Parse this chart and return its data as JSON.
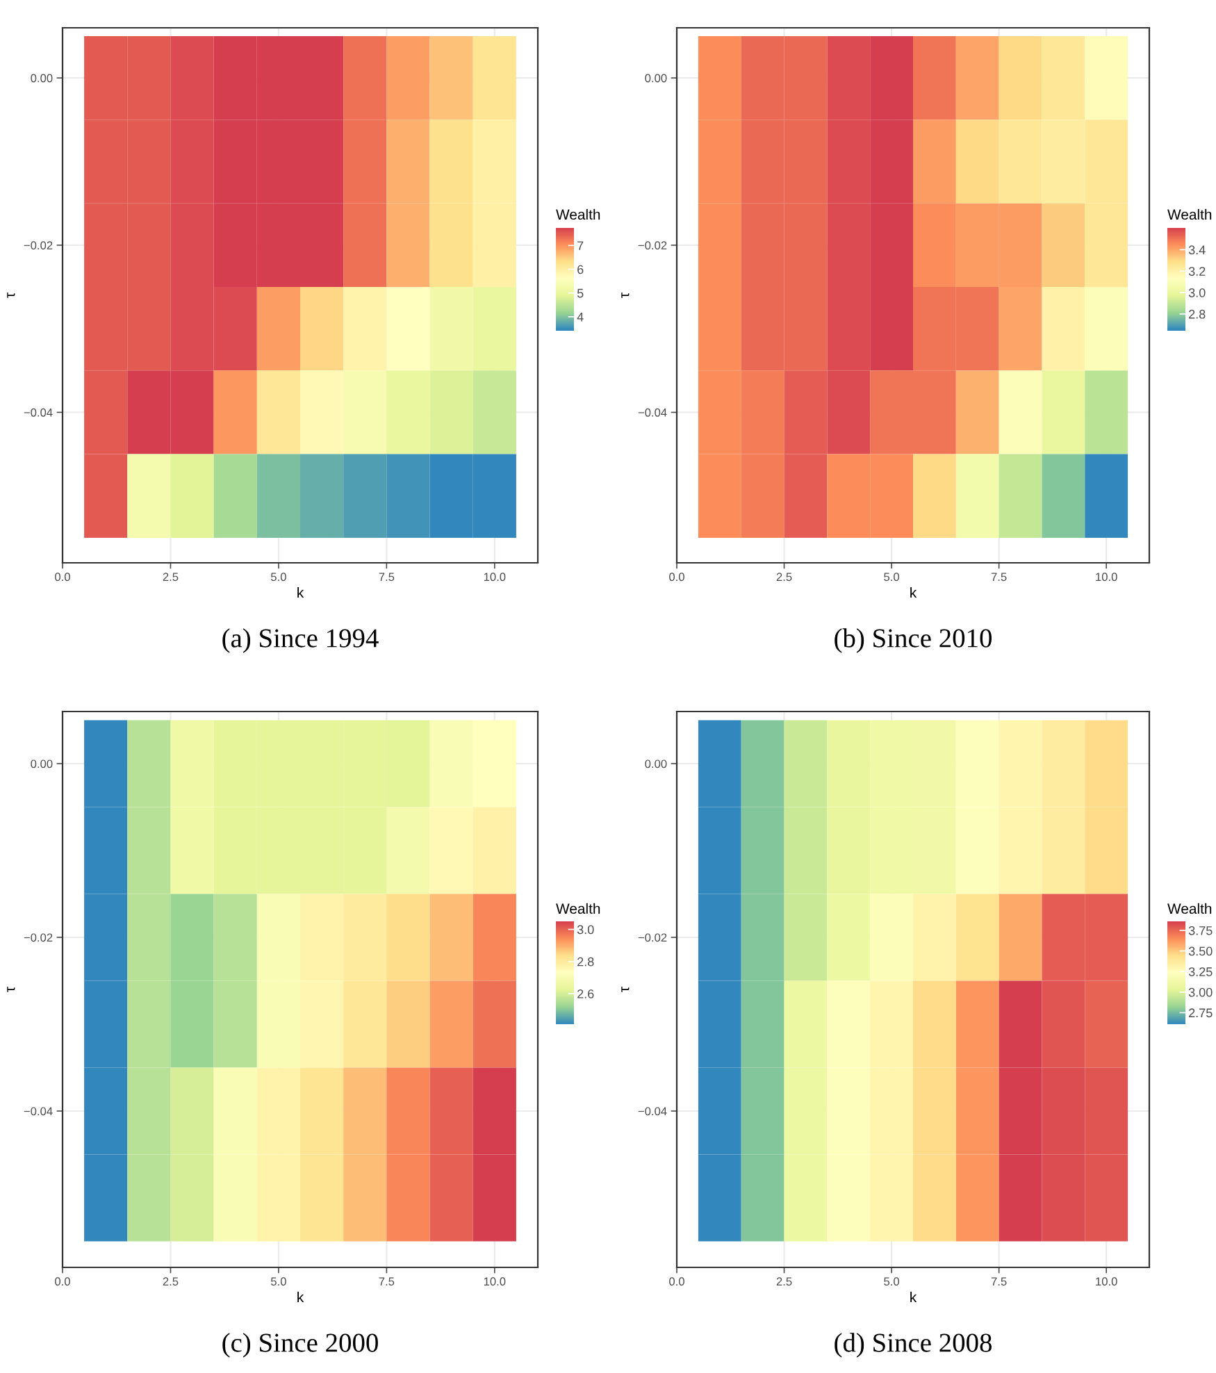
{
  "chart_data": [
    {
      "type": "heatmap",
      "title": "(a) Since 1994",
      "xlabel": "k",
      "ylabel": "τ",
      "clabel": "Wealth",
      "grid": true,
      "x": [
        1,
        2,
        3,
        4,
        5,
        6,
        7,
        8,
        9,
        10
      ],
      "y": [
        0,
        -0.01,
        -0.02,
        -0.03,
        -0.04,
        -0.05
      ],
      "xlim": [
        0,
        11
      ],
      "ylim": [
        -0.058,
        0.006
      ],
      "xticks": [
        {
          "value": 0,
          "label": "0.0"
        },
        {
          "value": 2.5,
          "label": "2.5"
        },
        {
          "value": 5,
          "label": "5.0"
        },
        {
          "value": 7.5,
          "label": "7.5"
        },
        {
          "value": 10,
          "label": "10.0"
        }
      ],
      "yticks": [
        {
          "value": 0,
          "label": "0.00"
        },
        {
          "value": -0.02,
          "label": "−0.02"
        },
        {
          "value": -0.04,
          "label": "−0.04"
        }
      ],
      "clim": [
        3.44,
        7.77
      ],
      "cticks": [
        4,
        5,
        6,
        7
      ],
      "cells": [
        [
          7.5,
          7.5,
          7.65,
          7.77,
          7.77,
          7.77,
          7.3,
          6.9,
          6.6,
          6.2
        ],
        [
          7.5,
          7.5,
          7.65,
          7.77,
          7.77,
          7.77,
          7.3,
          6.75,
          6.3,
          5.95
        ],
        [
          7.5,
          7.5,
          7.65,
          7.77,
          7.77,
          7.77,
          7.3,
          6.75,
          6.3,
          5.95
        ],
        [
          7.5,
          7.5,
          7.65,
          7.65,
          6.9,
          6.4,
          5.9,
          5.6,
          5.2,
          5.0
        ],
        [
          7.5,
          7.77,
          7.77,
          6.95,
          6.15,
          5.75,
          5.35,
          5.0,
          4.8,
          4.6
        ],
        [
          7.5,
          5.3,
          4.85,
          4.3,
          3.95,
          3.8,
          3.65,
          3.55,
          3.44,
          3.45
        ]
      ]
    },
    {
      "type": "heatmap",
      "title": "(b) Since 2010",
      "xlabel": "k",
      "ylabel": "τ",
      "clabel": "Wealth",
      "grid": true,
      "x": [
        1,
        2,
        3,
        4,
        5,
        6,
        7,
        8,
        9,
        10
      ],
      "y": [
        0,
        -0.01,
        -0.02,
        -0.03,
        -0.04,
        -0.05
      ],
      "xlim": [
        0,
        11
      ],
      "ylim": [
        -0.058,
        0.006
      ],
      "xticks": [
        {
          "value": 0,
          "label": "0.0"
        },
        {
          "value": 2.5,
          "label": "2.5"
        },
        {
          "value": 5,
          "label": "5.0"
        },
        {
          "value": 7.5,
          "label": "7.5"
        },
        {
          "value": 10,
          "label": "10.0"
        }
      ],
      "yticks": [
        {
          "value": 0,
          "label": "0.00"
        },
        {
          "value": -0.02,
          "label": "−0.02"
        },
        {
          "value": -0.04,
          "label": "−0.04"
        }
      ],
      "clim": [
        2.65,
        3.61
      ],
      "cticks": [
        {
          "value": 2.8,
          "label": "2.8"
        },
        {
          "value": 3.0,
          "label": "3.0"
        },
        {
          "value": 3.2,
          "label": "3.2"
        },
        {
          "value": 3.4,
          "label": "3.4"
        }
      ],
      "cells": [
        [
          3.45,
          3.52,
          3.52,
          3.58,
          3.61,
          3.5,
          3.4,
          3.3,
          3.25,
          3.15
        ],
        [
          3.45,
          3.52,
          3.52,
          3.58,
          3.61,
          3.42,
          3.3,
          3.25,
          3.22,
          3.25
        ],
        [
          3.45,
          3.52,
          3.52,
          3.58,
          3.61,
          3.45,
          3.42,
          3.42,
          3.33,
          3.25
        ],
        [
          3.45,
          3.52,
          3.52,
          3.58,
          3.61,
          3.5,
          3.5,
          3.4,
          3.2,
          3.1
        ],
        [
          3.45,
          3.48,
          3.55,
          3.58,
          3.5,
          3.5,
          3.38,
          3.1,
          3.0,
          2.88
        ],
        [
          3.45,
          3.48,
          3.55,
          3.45,
          3.45,
          3.3,
          3.05,
          2.9,
          2.78,
          2.65
        ]
      ]
    },
    {
      "type": "heatmap",
      "title": "(c) Since 2000",
      "xlabel": "k",
      "ylabel": "τ",
      "clabel": "Wealth",
      "grid": true,
      "x": [
        1,
        2,
        3,
        4,
        5,
        6,
        7,
        8,
        9,
        10
      ],
      "y": [
        0,
        -0.01,
        -0.02,
        -0.03,
        -0.04,
        -0.05
      ],
      "xlim": [
        0,
        11
      ],
      "ylim": [
        -0.058,
        0.006
      ],
      "xticks": [
        {
          "value": 0,
          "label": "0.0"
        },
        {
          "value": 2.5,
          "label": "2.5"
        },
        {
          "value": 5,
          "label": "5.0"
        },
        {
          "value": 7.5,
          "label": "7.5"
        },
        {
          "value": 10,
          "label": "10.0"
        }
      ],
      "yticks": [
        {
          "value": 0,
          "label": "0.00"
        },
        {
          "value": -0.02,
          "label": "−0.02"
        },
        {
          "value": -0.04,
          "label": "−0.04"
        }
      ],
      "clim": [
        2.41,
        3.05
      ],
      "cticks": [
        {
          "value": 2.6,
          "label": "2.6"
        },
        {
          "value": 2.8,
          "label": "2.8"
        },
        {
          "value": 3.0,
          "label": "3.0"
        }
      ],
      "cells": [
        [
          2.41,
          2.56,
          2.66,
          2.63,
          2.63,
          2.63,
          2.63,
          2.62,
          2.7,
          2.73
        ],
        [
          2.41,
          2.56,
          2.66,
          2.63,
          2.63,
          2.63,
          2.63,
          2.68,
          2.75,
          2.78
        ],
        [
          2.41,
          2.56,
          2.52,
          2.56,
          2.7,
          2.77,
          2.8,
          2.84,
          2.88,
          2.95
        ],
        [
          2.41,
          2.56,
          2.52,
          2.56,
          2.7,
          2.76,
          2.81,
          2.86,
          2.92,
          2.98
        ],
        [
          2.41,
          2.56,
          2.6,
          2.7,
          2.77,
          2.82,
          2.88,
          2.95,
          3.0,
          3.05
        ],
        [
          2.41,
          2.56,
          2.6,
          2.7,
          2.77,
          2.82,
          2.88,
          2.95,
          3.0,
          3.05
        ]
      ]
    },
    {
      "type": "heatmap",
      "title": "(d) Since 2008",
      "xlabel": "k",
      "ylabel": "τ",
      "clabel": "Wealth",
      "grid": true,
      "x": [
        1,
        2,
        3,
        4,
        5,
        6,
        7,
        8,
        9,
        10
      ],
      "y": [
        0,
        -0.01,
        -0.02,
        -0.03,
        -0.04,
        -0.05
      ],
      "xlim": [
        0,
        11
      ],
      "ylim": [
        -0.058,
        0.006
      ],
      "xticks": [
        {
          "value": 0,
          "label": "0.0"
        },
        {
          "value": 2.5,
          "label": "2.5"
        },
        {
          "value": 5,
          "label": "5.0"
        },
        {
          "value": 7.5,
          "label": "7.5"
        },
        {
          "value": 10,
          "label": "10.0"
        }
      ],
      "yticks": [
        {
          "value": 0,
          "label": "0.00"
        },
        {
          "value": -0.02,
          "label": "−0.02"
        },
        {
          "value": -0.04,
          "label": "−0.04"
        }
      ],
      "clim": [
        2.61,
        3.86
      ],
      "cticks": [
        2.75,
        {
          "value": 3.0,
          "label": "3.00"
        },
        3.25,
        {
          "value": 3.5,
          "label": "3.50"
        },
        3.75
      ],
      "cells": [
        [
          2.61,
          2.78,
          2.95,
          3.05,
          3.1,
          3.12,
          3.22,
          3.3,
          3.36,
          3.45
        ],
        [
          2.61,
          2.78,
          2.95,
          3.05,
          3.1,
          3.12,
          3.22,
          3.3,
          3.36,
          3.45
        ],
        [
          2.61,
          2.78,
          2.95,
          3.08,
          3.2,
          3.32,
          3.42,
          3.58,
          3.78,
          3.78
        ],
        [
          2.61,
          2.78,
          3.08,
          3.22,
          3.3,
          3.45,
          3.63,
          3.86,
          3.8,
          3.76
        ],
        [
          2.61,
          2.78,
          3.08,
          3.22,
          3.3,
          3.45,
          3.63,
          3.86,
          3.82,
          3.8
        ],
        [
          2.61,
          2.78,
          3.08,
          3.22,
          3.3,
          3.45,
          3.63,
          3.86,
          3.82,
          3.8
        ]
      ]
    }
  ]
}
